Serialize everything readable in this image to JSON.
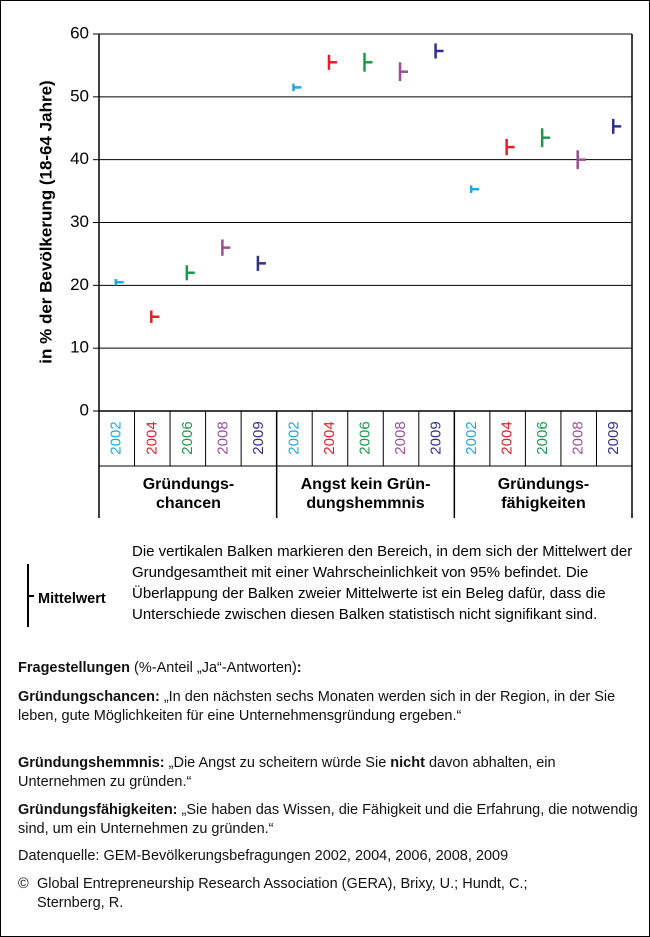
{
  "chart_data": {
    "type": "errorbar",
    "y_label": "in % der Bevölkerung (18-64 Jahre)",
    "categories": [
      "Gründungs-\nchancen",
      "Angst kein Grün-\ndungshemmnis",
      "Gründungs-\nfähigkeiten"
    ],
    "series": [
      {
        "name": "2002",
        "color": "#1ea7e1",
        "values": [
          20.5,
          51.5,
          35.3
        ],
        "errors": [
          0.5,
          0.6,
          0.6
        ]
      },
      {
        "name": "2004",
        "color": "#e3202a",
        "values": [
          15,
          55.5,
          42
        ],
        "errors": [
          1,
          1.2,
          1.3
        ]
      },
      {
        "name": "2006",
        "color": "#1a9a4a",
        "values": [
          22,
          55.5,
          43.5
        ],
        "errors": [
          1.2,
          1.5,
          1.5
        ]
      },
      {
        "name": "2008",
        "color": "#9b4d96",
        "values": [
          26,
          54,
          40
        ],
        "errors": [
          1.3,
          1.5,
          1.5
        ]
      },
      {
        "name": "2009",
        "color": "#2e2f8e",
        "values": [
          23.5,
          57.3,
          45.3
        ],
        "errors": [
          1.2,
          1.2,
          1.2
        ]
      }
    ],
    "ylim": [
      0,
      60
    ],
    "yticks": [
      0,
      10,
      20,
      30,
      40,
      50,
      60
    ],
    "grid": true
  },
  "legend": {
    "label": "Mittelwert",
    "text": "Die vertikalen Balken markieren den Bereich, in dem sich der Mittelwert der Grundgesamtheit mit einer Wahrscheinlichkeit von 95% befindet. Die Überlappung der Balken zweier Mittelwerte ist ein Beleg dafür, dass die Unterschiede zwischen diesen Balken statistisch nicht signifikant sind."
  },
  "notes": {
    "questions": {
      "label": "Fragestellungen",
      "text": "(%-Anteil „Ja“-Antworten)",
      "end": ":"
    },
    "chancen": {
      "label": "Gründungschancen:",
      "text": "„In den nächsten sechs Monaten werden sich in der Region, in der Sie leben, gute Möglichkeiten für eine Unternehmensgründung ergeben.“"
    },
    "hemmnis": {
      "label": "Gründungshemmnis:",
      "text": "„Die Angst zu scheitern würde Sie",
      "emphasis": "nicht",
      "text_after": "davon abhalten, ein Unternehmen zu gründen.“"
    },
    "faehigkeiten": {
      "label": "Gründungsfähigkeiten:",
      "text": "„Sie haben das Wissen, die Fähigkeit und die Erfahrung, die notwendig sind, um ein Unternehmen zu gründen.“"
    },
    "source": "Datenquelle: GEM-Bevölkerungsbefragungen 2002, 2004, 2006, 2008, 2009",
    "copyright_symbol": "©",
    "copyright": "Global Entrepreneurship Research Association (GERA), Brixy, U.; Hundt, C.; Sternberg, R."
  }
}
